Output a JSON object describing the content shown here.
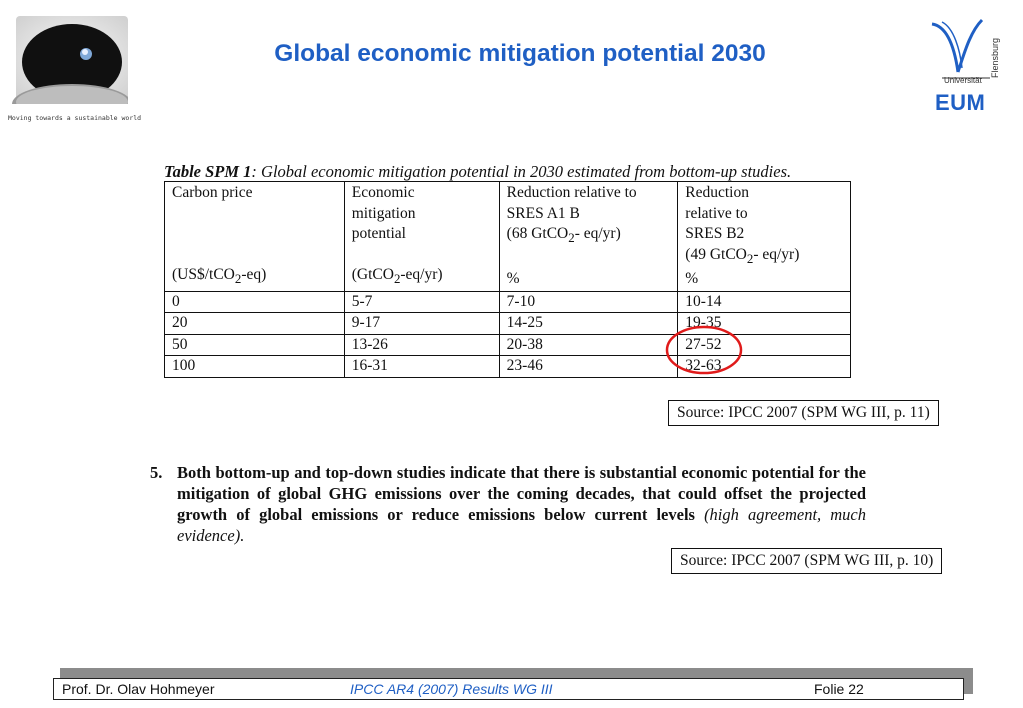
{
  "header": {
    "title": "Global economic mitigation potential 2030",
    "tagline": "Moving towards a sustainable world",
    "university_label": "Universität",
    "university_vertical": "Flensburg",
    "institute": "EUM"
  },
  "table": {
    "caption_bold": "Table SPM 1",
    "caption_rest": ": Global economic mitigation potential in 2030 estimated from bottom-up studies.",
    "headers": [
      {
        "lines": [
          "Carbon price"
        ],
        "unit_pre": "(US$/tCO",
        "unit_sub": "2",
        "unit_post": "-eq)"
      },
      {
        "lines": [
          "Economic",
          "mitigation",
          "potential"
        ],
        "unit_pre": "(GtCO",
        "unit_sub": "2",
        "unit_post": "-eq/yr)"
      },
      {
        "lines": [
          "Reduction relative to",
          "SRES A1 B"
        ],
        "line3_pre": "(68  GtCO",
        "line3_sub": "2",
        "line3_post": "- eq/yr)",
        "unit": "%"
      },
      {
        "lines": [
          "Reduction",
          "relative to",
          "SRES B2"
        ],
        "line4_pre": "(49 GtCO",
        "line4_sub": "2",
        "line4_post": "- eq/yr)",
        "unit": "%"
      }
    ],
    "rows": [
      [
        "0",
        "5-7",
        "7-10",
        "10-14"
      ],
      [
        "20",
        "9-17",
        "14-25",
        "19-35"
      ],
      [
        "50",
        "13-26",
        "20-38",
        "27-52"
      ],
      [
        "100",
        "16-31",
        "23-46",
        "32-63"
      ]
    ],
    "highlight_color": "#e01b1b"
  },
  "sources": {
    "source1": "Source: IPCC 2007 (SPM WG III, p. 11)",
    "source2": "Source: IPCC 2007 (SPM WG III, p. 10)"
  },
  "point": {
    "number": "5.",
    "text": "Both bottom-up and top-down studies indicate that there is substantial economic potential for the mitigation of global GHG emissions over the coming decades, that could offset the projected growth of global emissions or reduce emissions below current levels ",
    "italic": "(high agreement, much evidence)."
  },
  "footer": {
    "author": "Prof. Dr. Olav Hohmeyer",
    "center": "IPCC AR4 (2007) Results WG III",
    "page": "Folie 22"
  },
  "colors": {
    "title_blue": "#1f5fc4"
  }
}
